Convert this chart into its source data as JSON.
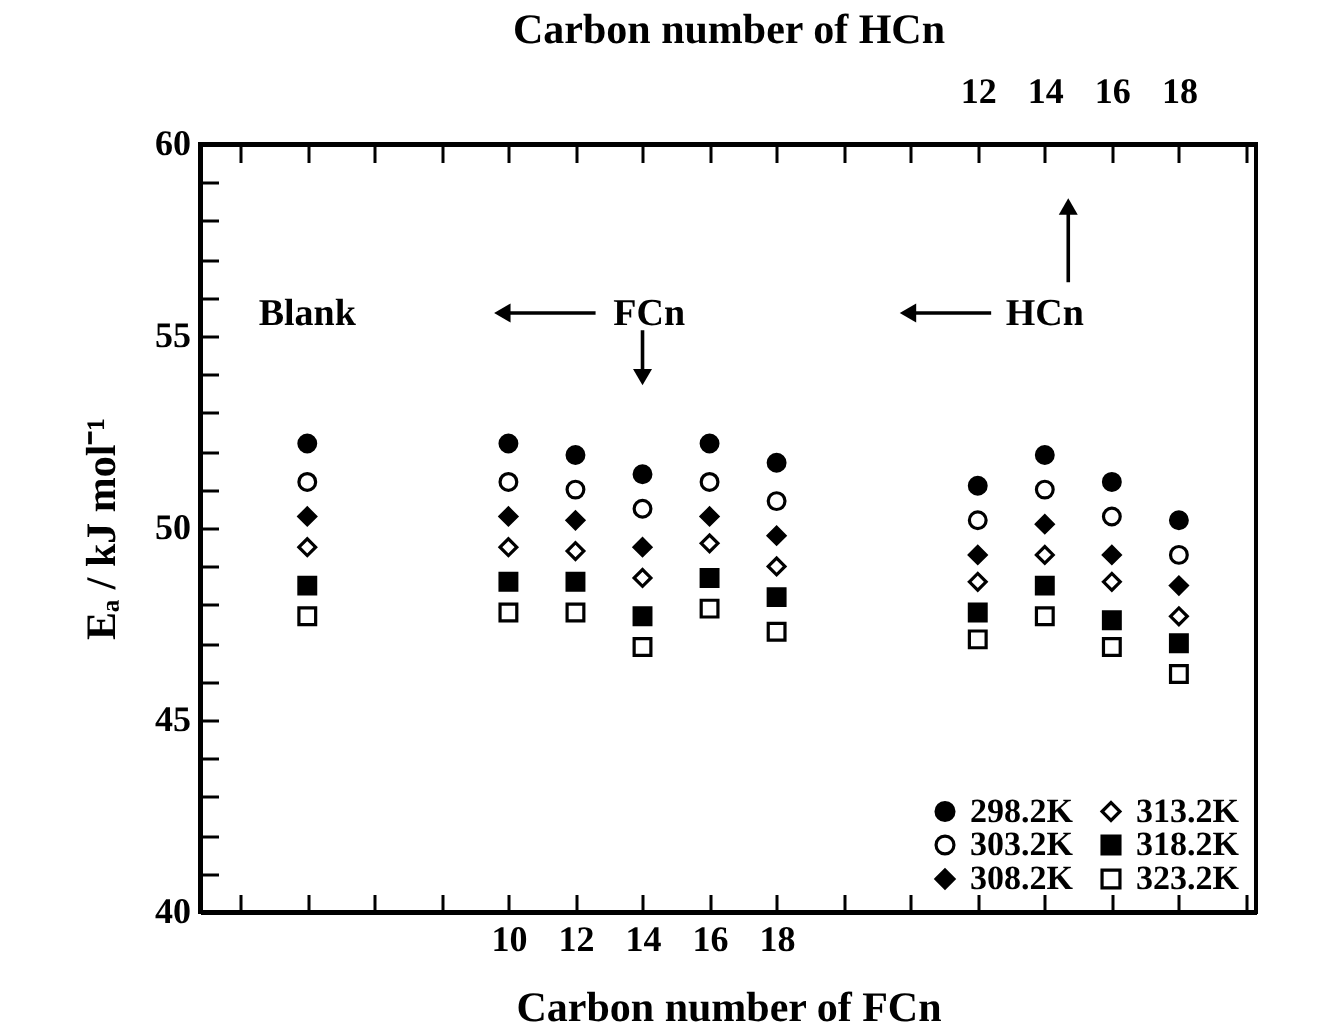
{
  "chart_data": {
    "type": "scatter",
    "xlabel": "Carbon number of FCn",
    "x2label": "Carbon number of HCn",
    "ylabel": "Eₐ  / kJ mol⁻¹",
    "x": [
      4,
      10,
      12,
      14,
      16,
      18,
      24,
      26,
      28,
      30
    ],
    "xlim": [
      0.8,
      32.3
    ],
    "xticks": [
      {
        "value": 2,
        "label": null
      },
      {
        "value": 4,
        "label": null
      },
      {
        "value": 6,
        "label": null
      },
      {
        "value": 8,
        "label": null
      },
      10,
      12,
      14,
      16,
      18,
      {
        "value": 20,
        "label": null
      },
      {
        "value": 22,
        "label": null
      },
      {
        "value": 24,
        "label": null
      },
      {
        "value": 26,
        "label": null
      },
      {
        "value": 28,
        "label": null
      },
      {
        "value": 30,
        "label": null
      },
      {
        "value": 32,
        "label": null
      }
    ],
    "x2lim": [
      -11.2,
      20.3
    ],
    "x2ticks": [
      {
        "value": -10,
        "label": null
      },
      {
        "value": -8,
        "label": null
      },
      {
        "value": -6,
        "label": null
      },
      {
        "value": -4,
        "label": null
      },
      {
        "value": -2,
        "label": null
      },
      {
        "value": 0,
        "label": null
      },
      {
        "value": 2,
        "label": null
      },
      {
        "value": 4,
        "label": null
      },
      {
        "value": 6,
        "label": null
      },
      {
        "value": 8,
        "label": null
      },
      {
        "value": 10,
        "label": null
      },
      12,
      14,
      16,
      18,
      {
        "value": 20,
        "label": null
      }
    ],
    "ylim": [
      40,
      60
    ],
    "yticks": [
      40,
      {
        "value": 41,
        "label": null
      },
      {
        "value": 42,
        "label": null
      },
      {
        "value": 43,
        "label": null
      },
      {
        "value": 44,
        "label": null
      },
      45,
      {
        "value": 46,
        "label": null
      },
      {
        "value": 47,
        "label": null
      },
      {
        "value": 48,
        "label": null
      },
      {
        "value": 49,
        "label": null
      },
      50,
      {
        "value": 51,
        "label": null
      },
      {
        "value": 52,
        "label": null
      },
      {
        "value": 53,
        "label": null
      },
      {
        "value": 54,
        "label": null
      },
      55,
      {
        "value": 56,
        "label": null
      },
      {
        "value": 57,
        "label": null
      },
      {
        "value": 58,
        "label": null
      },
      {
        "value": 59,
        "label": null
      },
      60
    ],
    "grid": false,
    "legend": "bottom right",
    "annotations": [
      "Blank",
      "FCn",
      "HCn"
    ],
    "series": [
      {
        "name": "298.2K",
        "color": "#000000",
        "marker": "circle",
        "values": [
          52.2,
          52.2,
          51.9,
          51.4,
          52.2,
          51.7,
          51.1,
          51.9,
          51.2,
          50.2
        ]
      },
      {
        "name": "303.2K",
        "color": "#000000",
        "marker": "circle-open",
        "values": [
          51.2,
          51.2,
          51.0,
          50.5,
          51.2,
          50.7,
          50.2,
          51.0,
          50.3,
          49.3
        ]
      },
      {
        "name": "308.2K",
        "color": "#000000",
        "marker": "diamond",
        "values": [
          50.3,
          50.3,
          50.2,
          49.5,
          50.3,
          49.8,
          49.3,
          50.1,
          49.3,
          48.5
        ]
      },
      {
        "name": "313.2K",
        "color": "#000000",
        "marker": "diamond-open",
        "values": [
          49.5,
          49.5,
          49.4,
          48.7,
          49.6,
          49.0,
          48.6,
          49.3,
          48.6,
          47.7
        ]
      },
      {
        "name": "318.2K",
        "color": "#000000",
        "marker": "square",
        "values": [
          48.5,
          48.6,
          48.6,
          47.7,
          48.7,
          48.2,
          47.8,
          48.5,
          47.6,
          47.0
        ]
      },
      {
        "name": "323.2K",
        "color": "#000000",
        "marker": "square-open",
        "values": [
          47.7,
          47.8,
          47.8,
          46.9,
          47.9,
          47.3,
          47.1,
          47.7,
          46.9,
          46.2
        ]
      }
    ]
  }
}
